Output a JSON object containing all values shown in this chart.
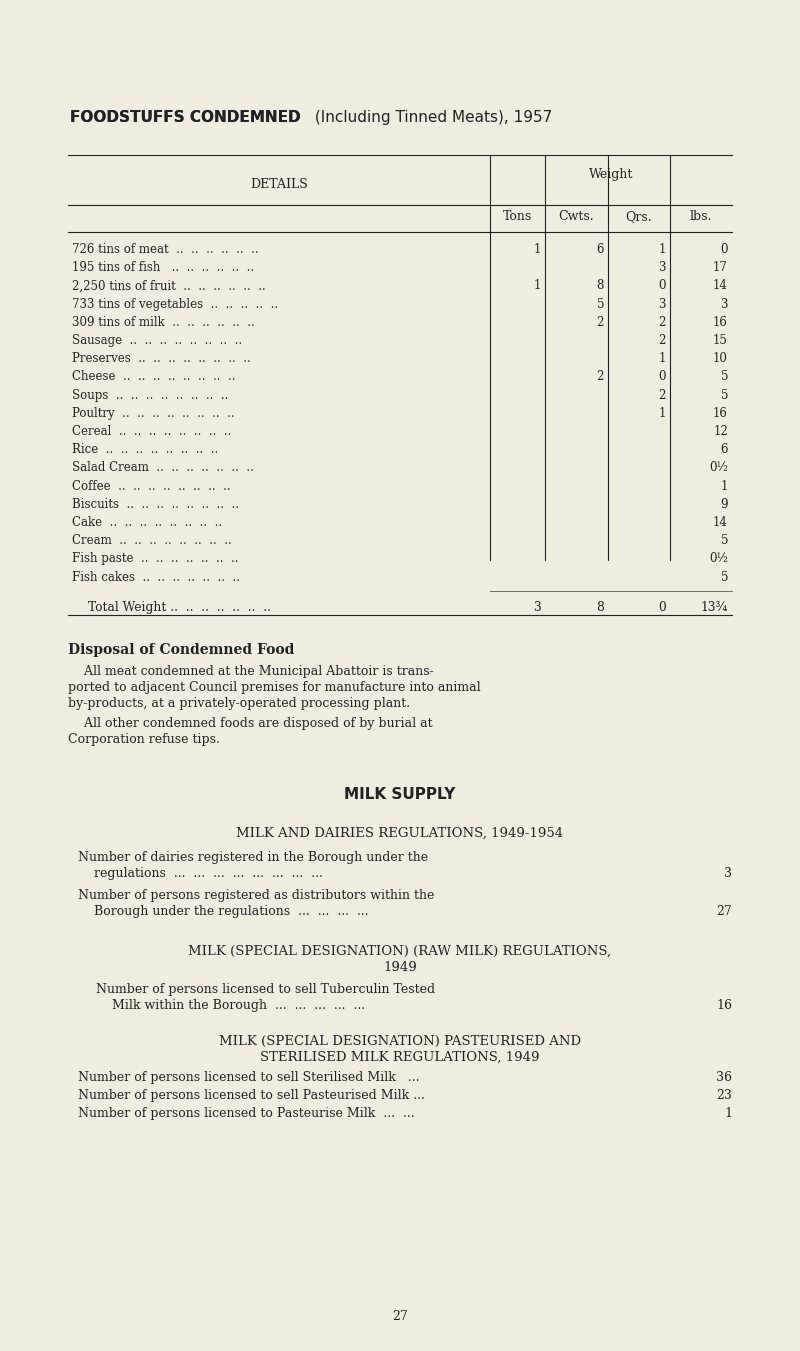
{
  "bg_color": "#f0ece0",
  "text_color": "#222222",
  "title_bold": "FOODSTUFFS CONDEMNED",
  "title_normal": " (Including Tinned Meats), 1957",
  "table_header": "DETAILS",
  "weight_label": "Weight",
  "col_headers": [
    "Tons",
    "Cwts.",
    "Qrs.",
    "lbs."
  ],
  "rows": [
    {
      "label": "726 tins of meat  ..  ..  ..  ..  ..  ..",
      "tons": "1",
      "cwts": "6",
      "qrs": "1",
      "lbs": "0"
    },
    {
      "label": "195 tins of fish   ..  ..  ..  ..  ..  ..",
      "tons": "",
      "cwts": "",
      "qrs": "3",
      "lbs": "17"
    },
    {
      "label": "2,250 tins of fruit  ..  ..  ..  ..  ..  ..",
      "tons": "1",
      "cwts": "8",
      "qrs": "0",
      "lbs": "14"
    },
    {
      "label": "733 tins of vegetables  ..  ..  ..  ..  ..",
      "tons": "",
      "cwts": "5",
      "qrs": "3",
      "lbs": "3"
    },
    {
      "label": "309 tins of milk  ..  ..  ..  ..  ..  ..",
      "tons": "",
      "cwts": "2",
      "qrs": "2",
      "lbs": "16"
    },
    {
      "label": "Sausage  ..  ..  ..  ..  ..  ..  ..  ..",
      "tons": "",
      "cwts": "",
      "qrs": "2",
      "lbs": "15"
    },
    {
      "label": "Preserves  ..  ..  ..  ..  ..  ..  ..  ..",
      "tons": "",
      "cwts": "",
      "qrs": "1",
      "lbs": "10"
    },
    {
      "label": "Cheese  ..  ..  ..  ..  ..  ..  ..  ..",
      "tons": "",
      "cwts": "2",
      "qrs": "0",
      "lbs": "5"
    },
    {
      "label": "Soups  ..  ..  ..  ..  ..  ..  ..  ..",
      "tons": "",
      "cwts": "",
      "qrs": "2",
      "lbs": "5"
    },
    {
      "label": "Poultry  ..  ..  ..  ..  ..  ..  ..  ..",
      "tons": "",
      "cwts": "",
      "qrs": "1",
      "lbs": "16"
    },
    {
      "label": "Cereal  ..  ..  ..  ..  ..  ..  ..  ..",
      "tons": "",
      "cwts": "",
      "qrs": "",
      "lbs": "12"
    },
    {
      "label": "Rice  ..  ..  ..  ..  ..  ..  ..  ..",
      "tons": "",
      "cwts": "",
      "qrs": "",
      "lbs": "6"
    },
    {
      "label": "Salad Cream  ..  ..  ..  ..  ..  ..  ..",
      "tons": "",
      "cwts": "",
      "qrs": "",
      "lbs": "0½"
    },
    {
      "label": "Coffee  ..  ..  ..  ..  ..  ..  ..  ..",
      "tons": "",
      "cwts": "",
      "qrs": "",
      "lbs": "1"
    },
    {
      "label": "Biscuits  ..  ..  ..  ..  ..  ..  ..  ..",
      "tons": "",
      "cwts": "",
      "qrs": "",
      "lbs": "9"
    },
    {
      "label": "Cake  ..  ..  ..  ..  ..  ..  ..  ..",
      "tons": "",
      "cwts": "",
      "qrs": "",
      "lbs": "14"
    },
    {
      "label": "Cream  ..  ..  ..  ..  ..  ..  ..  ..",
      "tons": "",
      "cwts": "",
      "qrs": "",
      "lbs": "5"
    },
    {
      "label": "Fish paste  ..  ..  ..  ..  ..  ..  ..",
      "tons": "",
      "cwts": "",
      "qrs": "",
      "lbs": "0½"
    },
    {
      "label": "Fish cakes  ..  ..  ..  ..  ..  ..  ..",
      "tons": "",
      "cwts": "",
      "qrs": "",
      "lbs": "5"
    }
  ],
  "total_label": "Total Weight ..  ..  ..  ..  ..  ..  ..",
  "total_tons": "3",
  "total_cwts": "8",
  "total_qrs": "0",
  "total_lbs": "13¾",
  "disposal_heading": "Disposal of Condemned Food",
  "disposal_p1_indent": "    All meat condemned at the Municipal Abattoir is trans-",
  "disposal_p1_line2": "ported to adjacent Council premises for manufacture into animal",
  "disposal_p1_line3": "by-products, at a privately-operated processing plant.",
  "disposal_p2_indent": "    All other condemned foods are disposed of by burial at",
  "disposal_p2_line2": "Corporation refuse tips.",
  "milk_heading": "MILK SUPPLY",
  "reg1_heading": "MILK AND DAIRIES REGULATIONS, 1949-1954",
  "reg1_item1a": "Number of dairies registered in the Borough under the",
  "reg1_item1b": "    regulations  ...  ...  ...  ...  ...  ...  ...  ...",
  "reg1_val1": "3",
  "reg1_item2a": "Number of persons registered as distributors within the",
  "reg1_item2b": "    Borough under the regulations  ...  ...  ...  ...",
  "reg1_val2": "27",
  "reg2_heading1": "MILK (SPECIAL DESIGNATION) (RAW MILK) REGULATIONS,",
  "reg2_heading2": "1949",
  "reg2_item1a": "Number of persons licensed to sell Tuberculin Tested",
  "reg2_item1b": "    Milk within the Borough  ...  ...  ...  ...  ...",
  "reg2_val1": "16",
  "reg3_heading1": "MILK (SPECIAL DESIGNATION) PASTEURISED AND",
  "reg3_heading2": "STERILISED MILK REGULATIONS, 1949",
  "reg3_item1": "Number of persons licensed to sell Sterilised Milk   ...",
  "reg3_val1": "36",
  "reg3_item2": "Number of persons licensed to sell Pasteurised Milk ...",
  "reg3_val2": "23",
  "reg3_item3": "Number of persons licensed to Pasteurise Milk  ...  ...",
  "reg3_val3": "1",
  "page_num": "27"
}
